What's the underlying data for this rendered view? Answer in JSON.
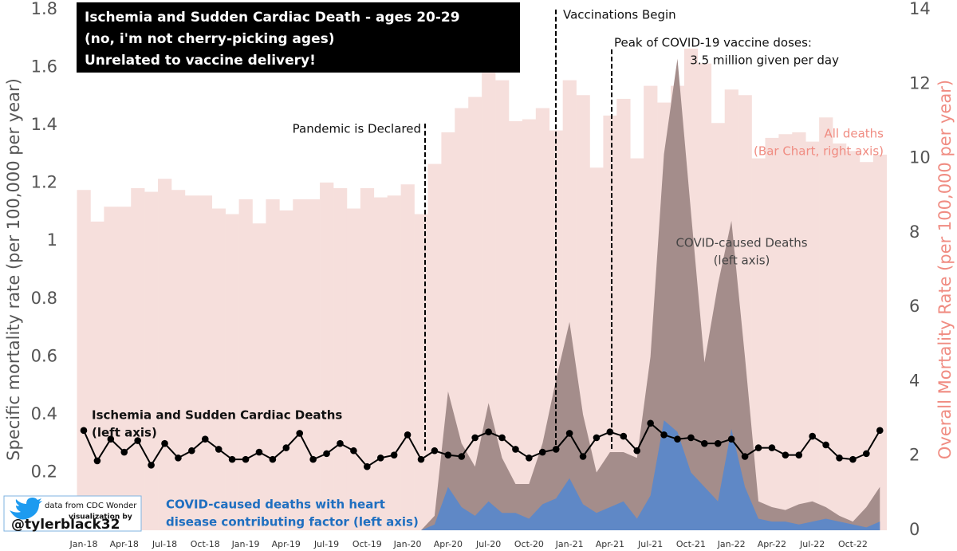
{
  "chart_data": {
    "type": "combo",
    "title_lines": [
      "Ischemia and Sudden Cardiac Death - ages 20-29",
      "(no, i'm not cherry-picking ages)",
      "Unrelated to vaccine delivery!"
    ],
    "y_label": "Specific mortality rate (per 100,000 per year)",
    "y2_label": "Overall Mortality Rate (per 100,000 per year)",
    "categories": [
      "Jan-18",
      null,
      null,
      "Apr-18",
      null,
      null,
      "Jul-18",
      null,
      null,
      "Oct-18",
      null,
      null,
      "Jan-19",
      null,
      null,
      "Apr-19",
      null,
      null,
      "Jul-19",
      null,
      null,
      "Oct-19",
      null,
      null,
      "Jan-20",
      null,
      null,
      "Apr-20",
      null,
      null,
      "Jul-20",
      null,
      null,
      "Oct-20",
      null,
      null,
      "Jan-21",
      null,
      null,
      "Apr-21",
      null,
      null,
      "Jul-21",
      null,
      null,
      "Oct-21",
      null,
      null,
      "Jan-22",
      null,
      null,
      "Apr-22",
      null,
      null,
      "Jul-22",
      null,
      null,
      "Oct-22",
      null,
      null
    ],
    "ylim": [
      0,
      1.8
    ],
    "yticks": [
      0.2,
      0.4,
      0.6,
      0.8,
      1,
      1.2,
      1.4,
      1.6,
      1.8
    ],
    "y2lim": [
      0,
      14
    ],
    "y2ticks": [
      0,
      2,
      4,
      6,
      8,
      10,
      12,
      14
    ],
    "series": [
      {
        "name": "All deaths",
        "note": "(Bar Chart, right axis)",
        "kind": "bar",
        "axis": "y2",
        "color": "#f6dfdc",
        "values": [
          9.15,
          8.3,
          8.7,
          8.7,
          9.2,
          9.1,
          9.45,
          9.15,
          9.0,
          9.0,
          8.65,
          8.5,
          8.9,
          8.25,
          8.9,
          8.6,
          8.9,
          8.9,
          9.35,
          9.2,
          8.65,
          9.2,
          8.95,
          9.0,
          9.3,
          8.5,
          9.85,
          10.7,
          11.35,
          11.65,
          12.3,
          12.1,
          11.0,
          11.05,
          11.35,
          10.75,
          12.1,
          11.7,
          9.75,
          11.15,
          11.6,
          10.0,
          11.95,
          11.5,
          11.95,
          12.95,
          12.55,
          10.95,
          11.85,
          11.7,
          10.0,
          10.55,
          10.65,
          10.7,
          10.45,
          11.1,
          10.4,
          10.2,
          9.9,
          10.1
        ]
      },
      {
        "name": "COVID-caused Deaths",
        "note": "(left axis)",
        "kind": "area",
        "color": "#a48d8b",
        "values": [
          null,
          null,
          null,
          null,
          null,
          null,
          null,
          null,
          null,
          null,
          null,
          null,
          null,
          null,
          null,
          null,
          null,
          null,
          null,
          null,
          null,
          null,
          null,
          null,
          null,
          0,
          0.05,
          0.48,
          0.3,
          0.22,
          0.44,
          0.25,
          0.16,
          0.16,
          0.3,
          0.52,
          0.72,
          0.4,
          0.2,
          0.27,
          0.27,
          0.25,
          0.6,
          1.3,
          1.63,
          1.1,
          0.58,
          0.85,
          1.07,
          0.6,
          0.1,
          0.08,
          0.07,
          0.09,
          0.1,
          0.08,
          0.05,
          0.03,
          0.08,
          0.15
        ]
      },
      {
        "name": "COVID-caused deaths with heart",
        "note": "disease contributing factor (left axis)",
        "kind": "area",
        "color": "#5f88c6",
        "values": [
          null,
          null,
          null,
          null,
          null,
          null,
          null,
          null,
          null,
          null,
          null,
          null,
          null,
          null,
          null,
          null,
          null,
          null,
          null,
          null,
          null,
          null,
          null,
          null,
          null,
          0,
          0.02,
          0.15,
          0.08,
          0.05,
          0.1,
          0.06,
          0.06,
          0.04,
          0.09,
          0.11,
          0.18,
          0.09,
          0.06,
          0.08,
          0.1,
          0.04,
          0.12,
          0.38,
          0.34,
          0.2,
          0.15,
          0.1,
          0.35,
          0.15,
          0.04,
          0.03,
          0.03,
          0.02,
          0.03,
          0.04,
          0.03,
          0.02,
          0.01,
          0.03
        ]
      },
      {
        "name": "Ischemia and Sudden Cardiac Deaths",
        "note": "(left axis)",
        "kind": "line",
        "color": "#000000",
        "values": [
          0.345,
          0.24,
          0.315,
          0.27,
          0.31,
          0.225,
          0.3,
          0.25,
          0.275,
          0.315,
          0.28,
          0.245,
          0.245,
          0.27,
          0.245,
          0.285,
          0.335,
          0.245,
          0.265,
          0.3,
          0.275,
          0.22,
          0.25,
          0.26,
          0.33,
          0.245,
          0.275,
          0.26,
          0.255,
          0.32,
          0.34,
          0.32,
          0.28,
          0.25,
          0.27,
          0.28,
          0.335,
          0.255,
          0.32,
          0.34,
          0.325,
          0.275,
          0.37,
          0.33,
          0.315,
          0.32,
          0.3,
          0.3,
          0.315,
          0.255,
          0.285,
          0.285,
          0.26,
          0.26,
          0.325,
          0.295,
          0.25,
          0.245,
          0.265,
          0.345
        ]
      }
    ],
    "events": [
      {
        "lines": [
          "Pandemic is Declared"
        ]
      },
      {
        "lines": [
          "Vaccinations Begin"
        ]
      },
      {
        "lines": [
          "Peak of COVID-19 vaccine doses:",
          "3.5 million given per day"
        ]
      }
    ],
    "credits": [
      "data from CDC Wonder",
      "visualization by",
      "@tylerblack32"
    ]
  }
}
